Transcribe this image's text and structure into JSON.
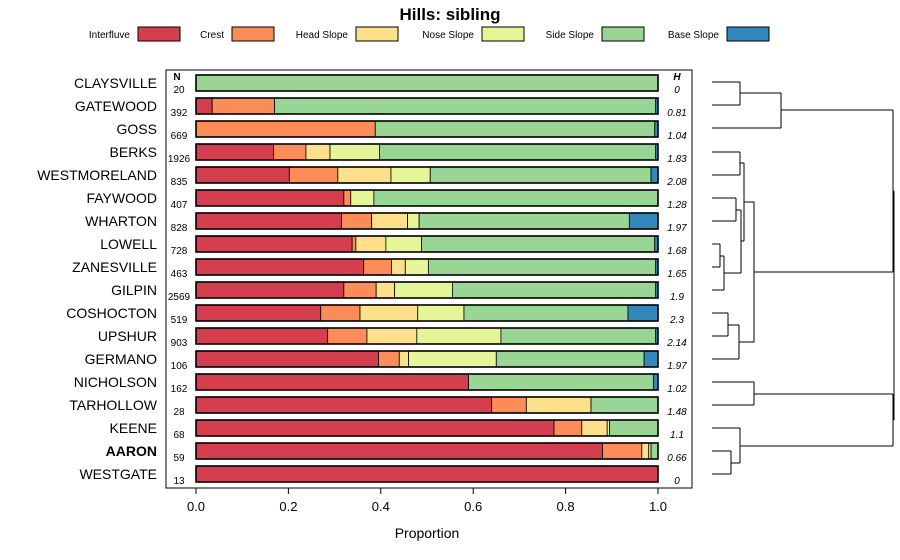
{
  "chart_data": {
    "type": "bar",
    "orientation": "horizontal",
    "stacked": true,
    "title": "Hills: sibling",
    "xlabel": "Proportion",
    "ylabel": "",
    "xlim": [
      0,
      1
    ],
    "x_ticks": [
      "0.0",
      "0.2",
      "0.4",
      "0.6",
      "0.8",
      "1.0"
    ],
    "x_tick_values": [
      0,
      0.2,
      0.4,
      0.6,
      0.8,
      1.0
    ],
    "n_header": "N",
    "h_header": "H",
    "legend_position": "top",
    "legend": [
      "Interfluve",
      "Crest",
      "Head Slope",
      "Nose Slope",
      "Side Slope",
      "Base Slope"
    ],
    "colors": [
      "#d53e4f",
      "#fc8d59",
      "#fee08b",
      "#e6f598",
      "#99d594",
      "#3288bd"
    ],
    "highlight_category": "AARON",
    "categories": [
      "CLAYSVILLE",
      "GATEWOOD",
      "GOSS",
      "BERKS",
      "WESTMORELAND",
      "FAYWOOD",
      "WHARTON",
      "LOWELL",
      "ZANESVILLE",
      "GILPIN",
      "COSHOCTON",
      "UPSHUR",
      "GERMANO",
      "NICHOLSON",
      "TARHOLLOW",
      "KEENE",
      "AARON",
      "WESTGATE"
    ],
    "n": [
      "20",
      "392",
      "669",
      "1926",
      "835",
      "407",
      "828",
      "728",
      "463",
      "2569",
      "519",
      "903",
      "106",
      "162",
      "28",
      "68",
      "59",
      "13"
    ],
    "h": [
      "0",
      "0.81",
      "1.04",
      "1.83",
      "2.08",
      "1.28",
      "1.97",
      "1.68",
      "1.65",
      "1.9",
      "2.3",
      "2.14",
      "1.97",
      "1.02",
      "1.48",
      "1.1",
      "0.66",
      "0"
    ],
    "series": [
      {
        "name": "Interfluve",
        "values": [
          0,
          0.035,
          0,
          0.168,
          0.202,
          0.32,
          0.315,
          0.338,
          0.363,
          0.32,
          0.27,
          0.285,
          0.395,
          0.59,
          0.64,
          0.775,
          0.88,
          1.0
        ]
      },
      {
        "name": "Crest",
        "values": [
          0,
          0.135,
          0.388,
          0.07,
          0.105,
          0.015,
          0.065,
          0.008,
          0.06,
          0.07,
          0.085,
          0.085,
          0.045,
          0,
          0.075,
          0.06,
          0.085,
          0
        ]
      },
      {
        "name": "Head Slope",
        "values": [
          0,
          0,
          0,
          0.052,
          0.115,
          0,
          0.078,
          0.065,
          0.03,
          0.04,
          0.125,
          0.108,
          0.02,
          0,
          0.14,
          0.055,
          0.015,
          0
        ]
      },
      {
        "name": "Nose Slope",
        "values": [
          0,
          0,
          0,
          0.107,
          0.085,
          0.05,
          0.025,
          0.077,
          0.05,
          0.125,
          0.1,
          0.182,
          0.19,
          0,
          0,
          0.005,
          0.005,
          0
        ]
      },
      {
        "name": "Side Slope",
        "values": [
          1.0,
          0.825,
          0.605,
          0.598,
          0.478,
          0.615,
          0.455,
          0.505,
          0.492,
          0.44,
          0.355,
          0.335,
          0.32,
          0.4,
          0.145,
          0.105,
          0.015,
          0
        ]
      },
      {
        "name": "Base Slope",
        "values": [
          0,
          0.005,
          0.007,
          0.005,
          0.015,
          0,
          0.062,
          0.007,
          0.005,
          0.005,
          0.065,
          0.005,
          0.03,
          0.01,
          0,
          0,
          0,
          0
        ]
      }
    ]
  }
}
